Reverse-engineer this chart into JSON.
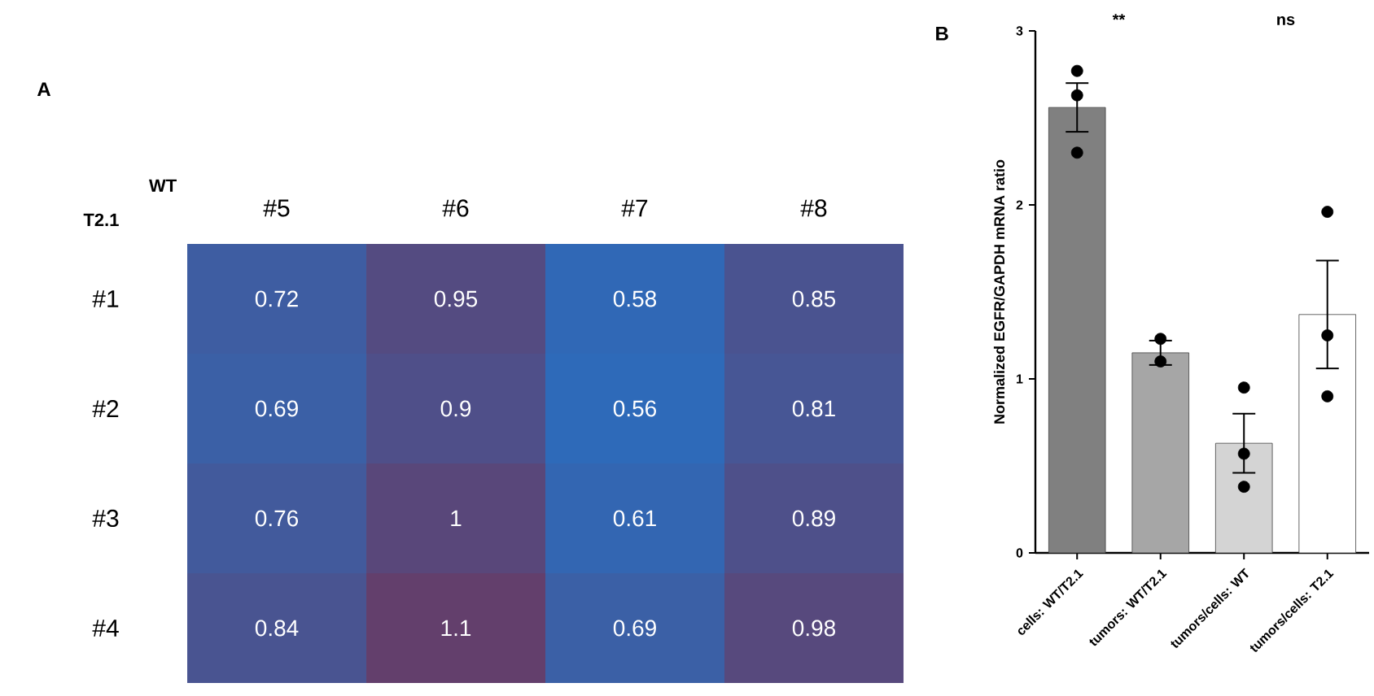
{
  "chart_data": [
    {
      "type": "heatmap",
      "title": "A",
      "xlabel": "WT",
      "ylabel": "T2.1",
      "categories": [
        "#5",
        "#6",
        "#7",
        "#8"
      ],
      "y_categories": [
        "#1",
        "#2",
        "#3",
        "#4"
      ],
      "cells": [
        [
          0.72,
          0.95,
          0.58,
          0.85
        ],
        [
          0.69,
          0.9,
          0.56,
          0.81
        ],
        [
          0.76,
          1,
          0.61,
          0.89
        ],
        [
          0.84,
          1.1,
          0.69,
          0.98
        ]
      ],
      "data_labels": true
    },
    {
      "type": "bar",
      "title": "B",
      "ylabel": "Normalized EGFR/GAPDH  mRNA ratio",
      "categories": [
        "cells: WT/T2.1",
        "tumors: WT/T2.1",
        "tumors/cells: WT",
        "tumors/cells: T2.1"
      ],
      "series": [
        {
          "type": "bar",
          "values": [
            2.56,
            1.15,
            0.63,
            1.37
          ],
          "colors": [
            "#808080",
            "#a6a6a6",
            "#d4d4d4",
            "#ffffff"
          ],
          "errors": [
            0.14,
            0.07,
            0.17,
            0.31
          ]
        },
        {
          "type": "scatter",
          "color": "#000000",
          "x": [
            "cells: WT/T2.1",
            "cells: WT/T2.1",
            "cells: WT/T2.1",
            "tumors: WT/T2.1",
            "tumors: WT/T2.1",
            "tumors/cells: WT",
            "tumors/cells: WT",
            "tumors/cells: WT",
            "tumors/cells: T2.1",
            "tumors/cells: T2.1",
            "tumors/cells: T2.1"
          ],
          "values": [
            2.77,
            2.63,
            2.3,
            1.23,
            1.1,
            0.95,
            0.57,
            0.38,
            1.96,
            1.25,
            0.9
          ]
        }
      ],
      "marker": "circle",
      "ylim": [
        0,
        3
      ],
      "yticks": [
        0,
        1,
        2,
        3
      ],
      "annotations": [
        "**",
        "ns"
      ]
    }
  ]
}
